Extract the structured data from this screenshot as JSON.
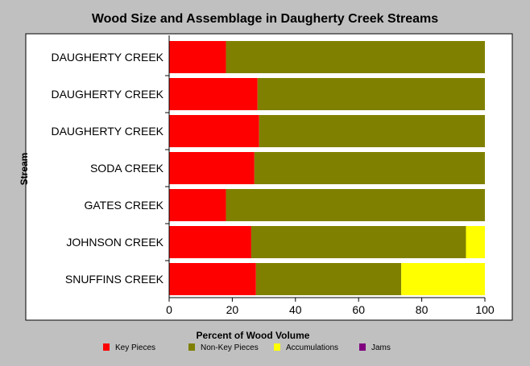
{
  "chart_data": {
    "type": "bar",
    "orientation": "horizontal",
    "stacked": true,
    "title": "Wood Size and Assemblage in Daugherty Creek Streams",
    "xlabel": "Percent of Wood Volume",
    "ylabel": "Stream",
    "xlim": [
      0,
      100
    ],
    "xticks": [
      "0",
      "20",
      "40",
      "60",
      "80",
      "100"
    ],
    "grid": false,
    "legend_position": "bottom",
    "categories": [
      "DAUGHERTY CREEK",
      "DAUGHERTY CREEK",
      "DAUGHERTY CREEK",
      "SODA CREEK",
      "GATES CREEK",
      "JOHNSON CREEK",
      "SNUFFINS CREEK"
    ],
    "series": [
      {
        "name": "Key Pieces",
        "color": "#ff0000",
        "values": [
          18,
          28,
          28.5,
          27,
          18,
          26,
          27.5
        ]
      },
      {
        "name": "Non-Key Pieces",
        "color": "#808000",
        "values": [
          82,
          72,
          71.5,
          73,
          82,
          68,
          46
        ]
      },
      {
        "name": "Accumulations",
        "color": "#ffff00",
        "values": [
          0,
          0,
          0,
          0,
          0,
          6,
          26.5
        ]
      },
      {
        "name": "Jams",
        "color": "#800080",
        "values": [
          0,
          0,
          0,
          0,
          0,
          0,
          0
        ]
      }
    ]
  }
}
